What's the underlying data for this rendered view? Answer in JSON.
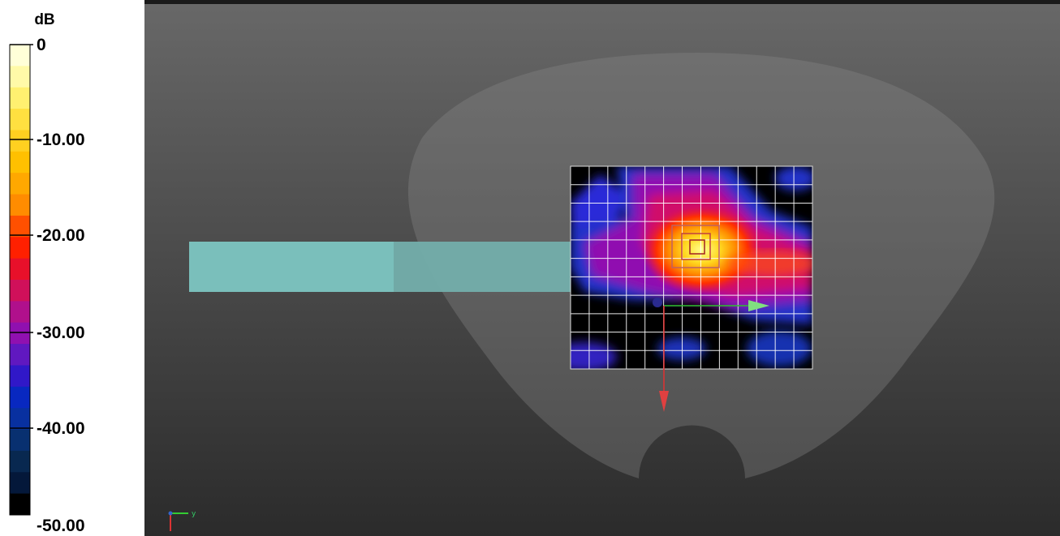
{
  "colorbar": {
    "unit": "dB",
    "labels": [
      "0",
      "-10.00",
      "-20.00",
      "-30.00",
      "-40.00",
      "-50.00"
    ]
  },
  "axes_triad": {
    "y_label": "y"
  }
}
